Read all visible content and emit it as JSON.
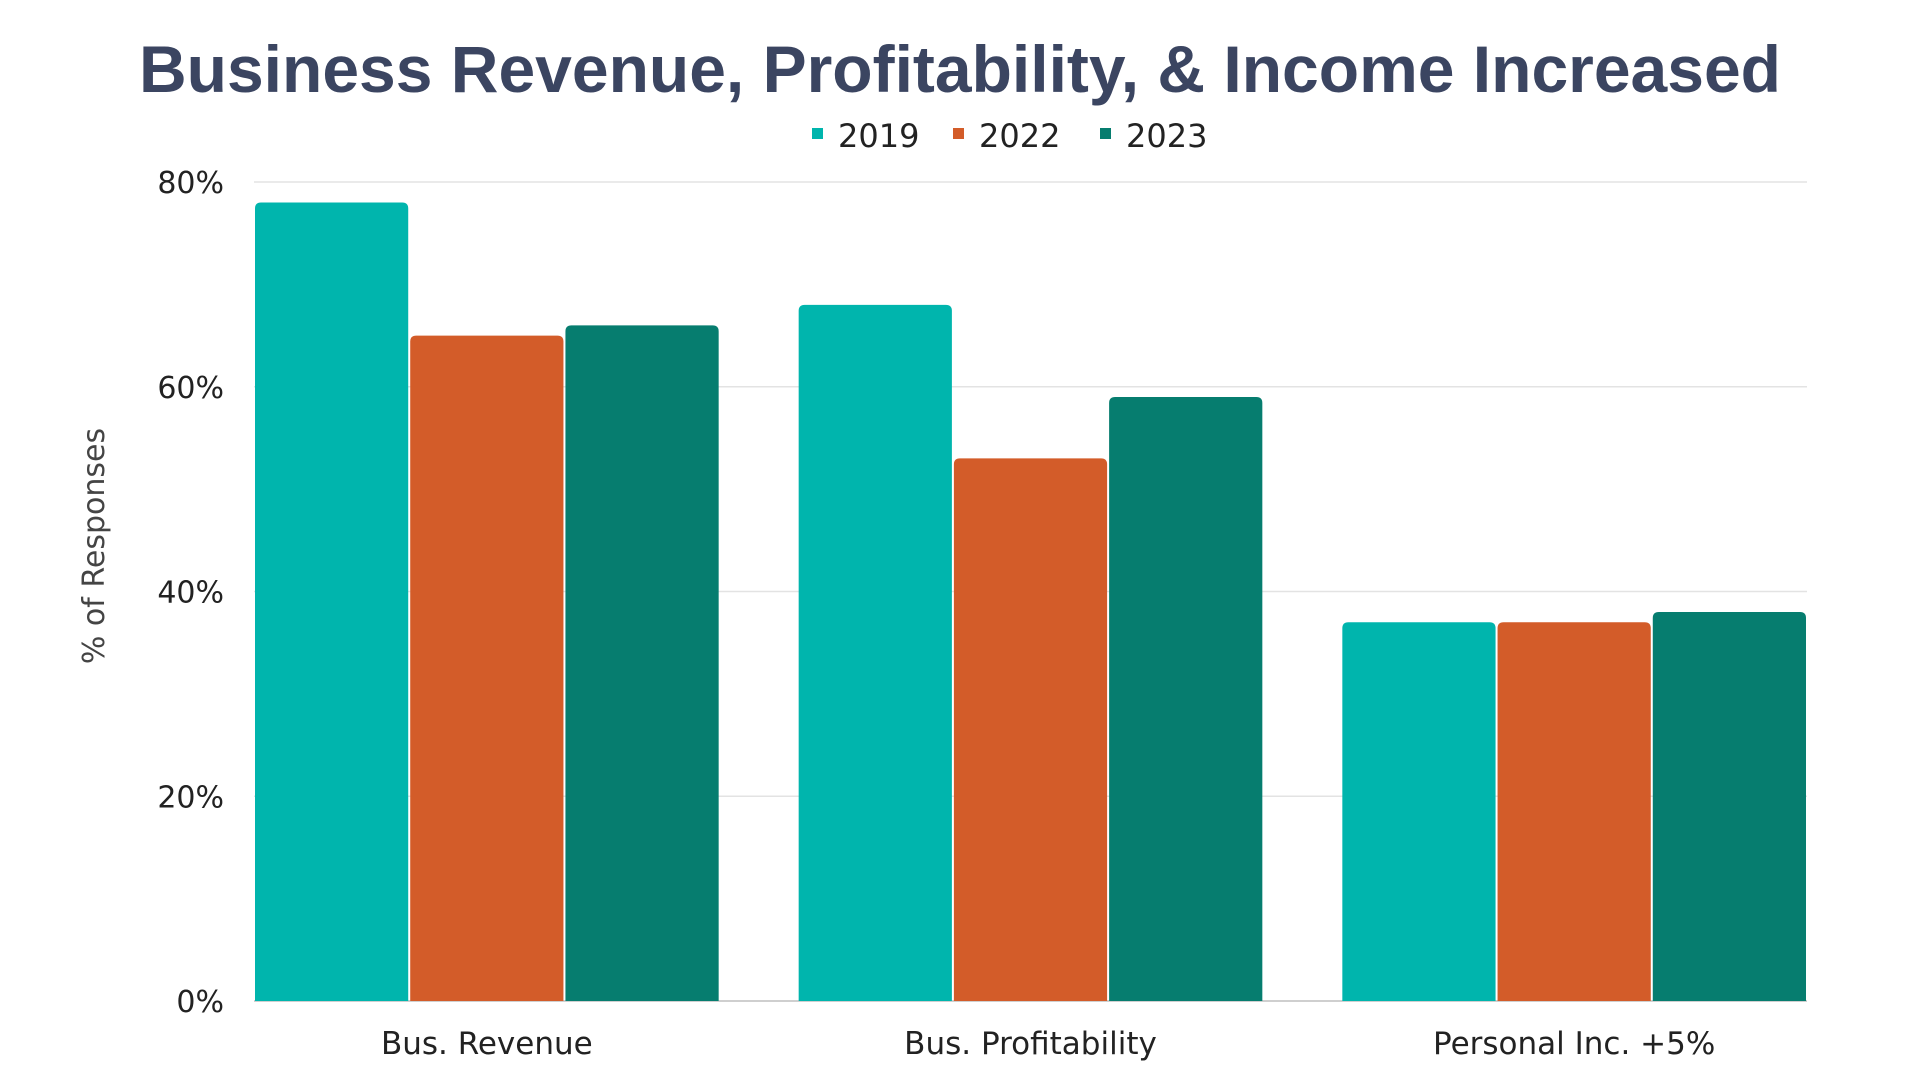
{
  "chart_data": {
    "type": "bar",
    "title": "Business Revenue, Profitability, & Income Increased",
    "xlabel": "",
    "ylabel": "% of Responses",
    "ylim": [
      0,
      80
    ],
    "yticks": [
      "0%",
      "20%",
      "40%",
      "60%",
      "80%"
    ],
    "ytick_values": [
      0,
      20,
      40,
      60,
      80
    ],
    "grid": true,
    "legend_placement": "top-center",
    "categories": [
      "Bus. Revenue",
      "Bus. Profitability",
      "Personal Inc. +5%"
    ],
    "series": [
      {
        "name": "2019",
        "color": "#00b5ad",
        "values": [
          78,
          68,
          37
        ]
      },
      {
        "name": "2022",
        "color": "#d35c29",
        "values": [
          65,
          53,
          37
        ]
      },
      {
        "name": "2023",
        "color": "#067d6f",
        "values": [
          66,
          59,
          38
        ]
      }
    ]
  }
}
